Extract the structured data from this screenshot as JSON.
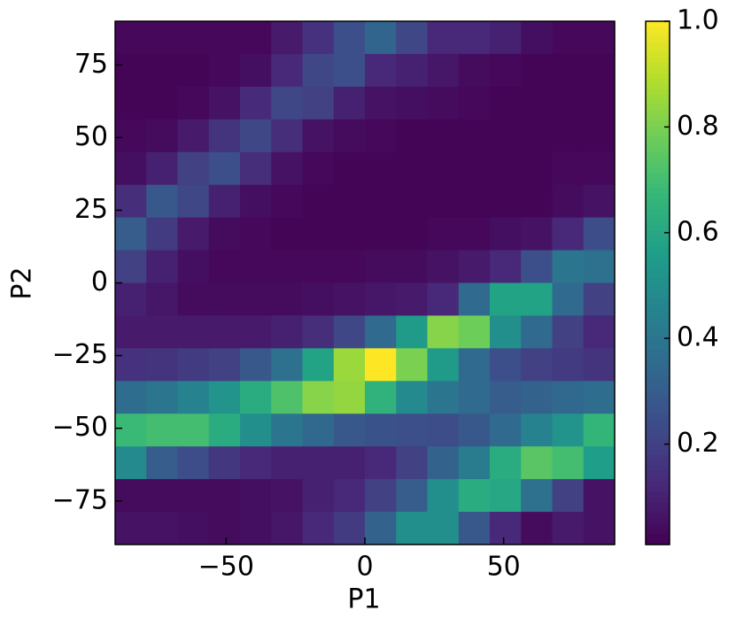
{
  "chart_data": {
    "type": "heatmap",
    "colormap": "viridis",
    "x_label": "P1",
    "y_label": "P2",
    "xlim": [
      -90,
      90
    ],
    "ylim": [
      -90,
      90
    ],
    "xticks": [
      {
        "value": -50,
        "label": "−50"
      },
      0,
      50
    ],
    "yticks": [
      {
        "value": -75,
        "label": "−75"
      },
      {
        "value": -50,
        "label": "−50"
      },
      {
        "value": -25,
        "label": "−25"
      },
      0,
      25,
      50,
      75
    ],
    "clim": [
      0.01,
      1.0
    ],
    "cticks": [
      0.2,
      0.4,
      0.6,
      0.8,
      {
        "value": 1,
        "label": "1.0"
      }
    ],
    "values": [
      [
        0.03,
        0.03,
        0.03,
        0.03,
        0.03,
        0.08,
        0.15,
        0.25,
        0.33,
        0.22,
        0.12,
        0.12,
        0.1,
        0.05,
        0.03,
        0.03
      ],
      [
        0.02,
        0.02,
        0.02,
        0.03,
        0.05,
        0.12,
        0.22,
        0.25,
        0.12,
        0.1,
        0.07,
        0.04,
        0.03,
        0.02,
        0.02,
        0.02
      ],
      [
        0.02,
        0.02,
        0.03,
        0.06,
        0.13,
        0.22,
        0.2,
        0.1,
        0.06,
        0.05,
        0.04,
        0.03,
        0.02,
        0.02,
        0.02,
        0.02
      ],
      [
        0.03,
        0.04,
        0.08,
        0.16,
        0.22,
        0.14,
        0.06,
        0.04,
        0.03,
        0.02,
        0.02,
        0.02,
        0.02,
        0.02,
        0.02,
        0.02
      ],
      [
        0.05,
        0.1,
        0.2,
        0.25,
        0.14,
        0.06,
        0.03,
        0.02,
        0.02,
        0.02,
        0.02,
        0.02,
        0.02,
        0.02,
        0.03,
        0.03
      ],
      [
        0.14,
        0.28,
        0.22,
        0.1,
        0.05,
        0.03,
        0.02,
        0.02,
        0.02,
        0.02,
        0.02,
        0.02,
        0.02,
        0.02,
        0.04,
        0.06
      ],
      [
        0.3,
        0.18,
        0.08,
        0.04,
        0.03,
        0.02,
        0.02,
        0.02,
        0.02,
        0.02,
        0.03,
        0.03,
        0.05,
        0.06,
        0.12,
        0.24
      ],
      [
        0.2,
        0.1,
        0.05,
        0.03,
        0.03,
        0.03,
        0.03,
        0.03,
        0.04,
        0.04,
        0.06,
        0.08,
        0.12,
        0.25,
        0.4,
        0.38
      ],
      [
        0.1,
        0.07,
        0.04,
        0.04,
        0.04,
        0.04,
        0.05,
        0.06,
        0.07,
        0.08,
        0.12,
        0.35,
        0.58,
        0.58,
        0.35,
        0.2
      ],
      [
        0.08,
        0.08,
        0.08,
        0.08,
        0.08,
        0.1,
        0.14,
        0.22,
        0.35,
        0.55,
        0.82,
        0.78,
        0.5,
        0.35,
        0.2,
        0.12
      ],
      [
        0.15,
        0.16,
        0.18,
        0.2,
        0.28,
        0.38,
        0.58,
        0.85,
        1.0,
        0.8,
        0.55,
        0.35,
        0.25,
        0.2,
        0.18,
        0.16
      ],
      [
        0.36,
        0.4,
        0.45,
        0.52,
        0.62,
        0.72,
        0.82,
        0.84,
        0.65,
        0.48,
        0.4,
        0.35,
        0.3,
        0.32,
        0.34,
        0.36
      ],
      [
        0.68,
        0.7,
        0.7,
        0.62,
        0.5,
        0.4,
        0.34,
        0.28,
        0.26,
        0.25,
        0.24,
        0.28,
        0.35,
        0.45,
        0.52,
        0.66
      ],
      [
        0.48,
        0.3,
        0.24,
        0.17,
        0.12,
        0.1,
        0.1,
        0.1,
        0.12,
        0.2,
        0.32,
        0.42,
        0.62,
        0.74,
        0.7,
        0.56
      ],
      [
        0.04,
        0.04,
        0.04,
        0.04,
        0.05,
        0.06,
        0.1,
        0.12,
        0.2,
        0.3,
        0.5,
        0.62,
        0.6,
        0.38,
        0.2,
        0.06
      ],
      [
        0.06,
        0.06,
        0.05,
        0.04,
        0.05,
        0.07,
        0.12,
        0.18,
        0.32,
        0.5,
        0.5,
        0.28,
        0.12,
        0.04,
        0.08,
        0.06
      ]
    ]
  }
}
